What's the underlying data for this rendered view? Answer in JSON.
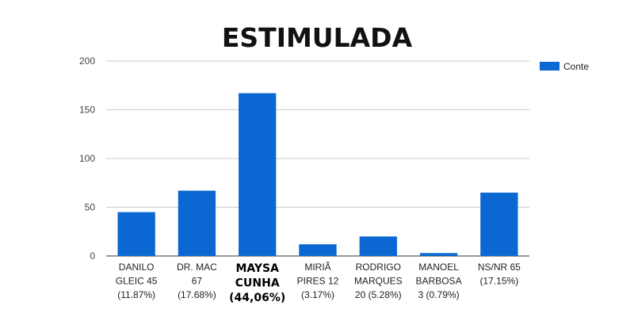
{
  "chart_data": {
    "type": "bar",
    "title": "ESTIMULADA",
    "xlabel": "",
    "ylabel": "",
    "ylim": [
      0,
      200
    ],
    "yticks": [
      0,
      50,
      100,
      150,
      200
    ],
    "grid": true,
    "legend_position": "right",
    "categories": [
      [
        "DANILO",
        "GLEIC 45",
        "(11.87%)"
      ],
      [
        "DR. MAC",
        "67",
        "(17.68%)"
      ],
      [
        "MAYSA",
        "CUNHA",
        "(44,06%)"
      ],
      [
        "MIRIÃ",
        "PIRES 12",
        "(3.17%)"
      ],
      [
        "RODRIGO",
        "MARQUES",
        "20 (5.28%)"
      ],
      [
        "MANOEL",
        "BARBOSA",
        "3 (0.79%)"
      ],
      [
        "NS/NR 65",
        "(17.15%)"
      ]
    ],
    "highlight_category": 2,
    "series": [
      {
        "name": "Conte",
        "color": "#0b67d1",
        "values": [
          45,
          67,
          167,
          12,
          20,
          3,
          65
        ]
      }
    ]
  }
}
